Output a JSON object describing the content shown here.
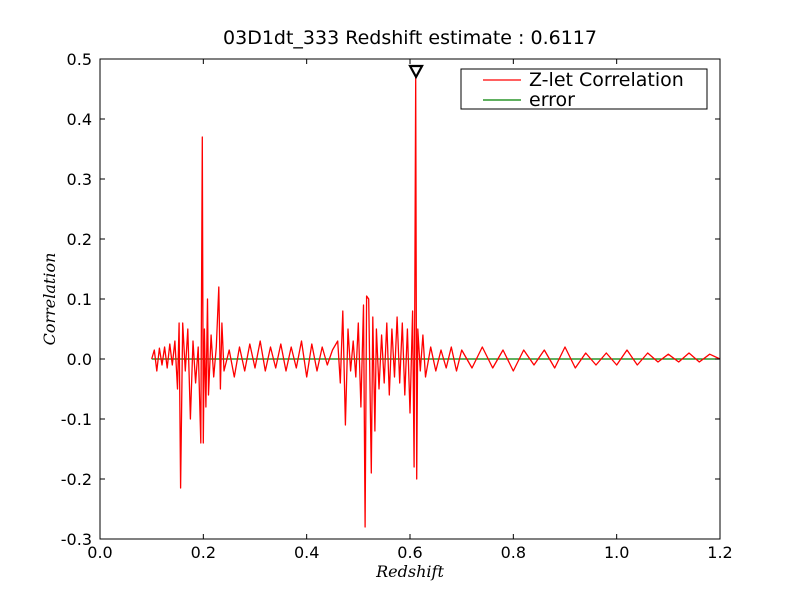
{
  "chart_data": {
    "type": "line",
    "title": "03D1dt_333 Redshift estimate : 0.6117",
    "xlabel": "Redshift",
    "ylabel": "Correlation",
    "xlim": [
      0.0,
      1.2
    ],
    "ylim": [
      -0.3,
      0.5
    ],
    "xticks": [
      "0.0",
      "0.2",
      "0.4",
      "0.6",
      "0.8",
      "1.0",
      "1.2"
    ],
    "yticks": [
      "0.5",
      "0.4",
      "0.3",
      "0.2",
      "0.1",
      "0.0",
      "-0.1",
      "-0.2",
      "-0.3"
    ],
    "grid": false,
    "legend_position": "top-right",
    "series": [
      {
        "name": "Z-let Correlation",
        "color": "#ff0000",
        "x": [
          0.1,
          0.105,
          0.11,
          0.115,
          0.12,
          0.125,
          0.13,
          0.135,
          0.14,
          0.145,
          0.15,
          0.153,
          0.156,
          0.16,
          0.165,
          0.17,
          0.175,
          0.18,
          0.185,
          0.19,
          0.195,
          0.198,
          0.2,
          0.202,
          0.205,
          0.208,
          0.21,
          0.215,
          0.22,
          0.225,
          0.23,
          0.233,
          0.236,
          0.24,
          0.25,
          0.26,
          0.27,
          0.28,
          0.29,
          0.3,
          0.31,
          0.32,
          0.33,
          0.34,
          0.35,
          0.36,
          0.37,
          0.38,
          0.39,
          0.4,
          0.41,
          0.42,
          0.43,
          0.44,
          0.45,
          0.46,
          0.465,
          0.47,
          0.475,
          0.48,
          0.485,
          0.49,
          0.495,
          0.5,
          0.505,
          0.51,
          0.513,
          0.516,
          0.52,
          0.525,
          0.528,
          0.532,
          0.535,
          0.54,
          0.545,
          0.55,
          0.555,
          0.56,
          0.565,
          0.57,
          0.575,
          0.58,
          0.585,
          0.59,
          0.595,
          0.6,
          0.605,
          0.608,
          0.611,
          0.613,
          0.615,
          0.62,
          0.625,
          0.63,
          0.64,
          0.65,
          0.66,
          0.67,
          0.68,
          0.69,
          0.7,
          0.72,
          0.74,
          0.76,
          0.78,
          0.8,
          0.82,
          0.84,
          0.86,
          0.88,
          0.9,
          0.92,
          0.94,
          0.96,
          0.98,
          1.0,
          1.02,
          1.04,
          1.06,
          1.08,
          1.1,
          1.12,
          1.14,
          1.16,
          1.18,
          1.2
        ],
        "y": [
          0.0,
          0.015,
          -0.02,
          0.018,
          -0.01,
          0.02,
          -0.015,
          0.025,
          -0.01,
          0.03,
          -0.05,
          0.06,
          -0.215,
          0.06,
          -0.02,
          0.05,
          -0.1,
          0.03,
          -0.04,
          0.02,
          -0.14,
          0.37,
          -0.14,
          0.05,
          -0.08,
          0.1,
          -0.06,
          0.04,
          -0.03,
          0.02,
          0.12,
          -0.05,
          0.06,
          -0.02,
          0.015,
          -0.03,
          0.02,
          -0.02,
          0.025,
          -0.015,
          0.03,
          -0.02,
          0.02,
          -0.015,
          0.025,
          -0.02,
          0.02,
          -0.015,
          0.03,
          -0.03,
          0.025,
          -0.02,
          0.02,
          -0.01,
          0.015,
          0.03,
          -0.04,
          0.08,
          -0.11,
          0.05,
          -0.02,
          0.03,
          -0.03,
          0.06,
          -0.08,
          0.09,
          -0.28,
          0.105,
          0.1,
          -0.19,
          0.07,
          -0.12,
          0.05,
          -0.05,
          0.04,
          -0.04,
          0.06,
          -0.06,
          0.05,
          -0.03,
          0.07,
          -0.04,
          0.06,
          -0.06,
          0.05,
          -0.09,
          0.08,
          -0.18,
          0.47,
          -0.2,
          0.05,
          -0.02,
          0.04,
          -0.03,
          0.02,
          -0.02,
          0.015,
          -0.015,
          0.02,
          -0.02,
          0.015,
          -0.015,
          0.02,
          -0.015,
          0.015,
          -0.02,
          0.015,
          -0.01,
          0.015,
          -0.015,
          0.02,
          -0.015,
          0.01,
          -0.01,
          0.01,
          -0.01,
          0.015,
          -0.01,
          0.01,
          -0.005,
          0.008,
          -0.005,
          0.01,
          -0.005,
          0.008,
          0.0
        ]
      },
      {
        "name": "error",
        "color": "#008000",
        "x": [
          0.1,
          1.2
        ],
        "y": [
          0.0,
          0.0
        ]
      }
    ],
    "annotations": [
      {
        "marker": "triangle-down",
        "x": 0.6117,
        "y": 0.48
      }
    ]
  }
}
